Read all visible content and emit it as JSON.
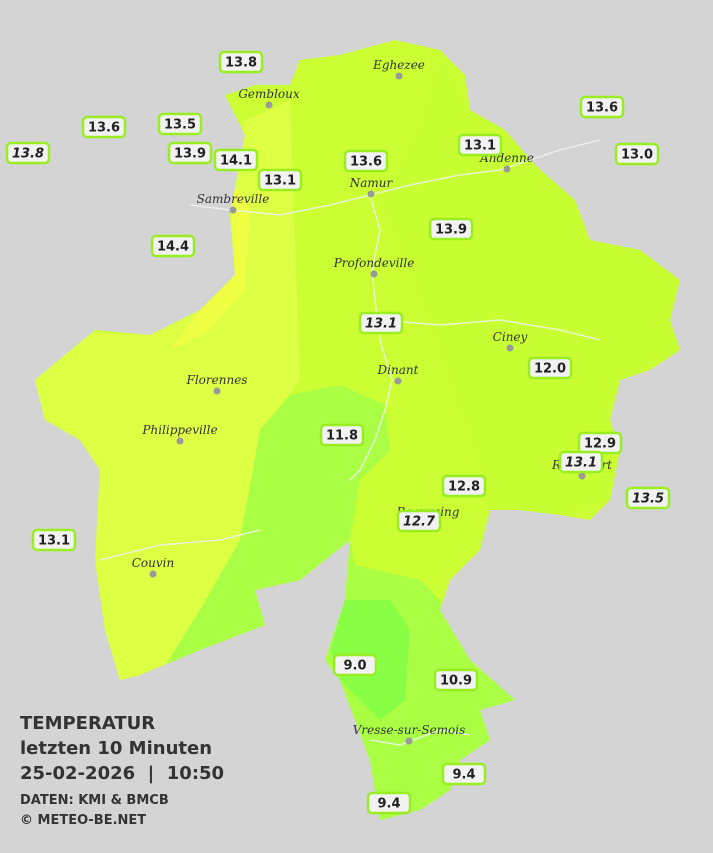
{
  "title": {
    "line1": "TEMPERATUR",
    "line2": "letzten 10 Minuten",
    "line3": "25-02-2026  |  10:50",
    "source": "DATEN: KMI & BMCB",
    "copyright": "© METEO-BE.NET"
  },
  "cities": [
    "Eghezee",
    "Gembloux",
    "Andenne",
    "Namur",
    "Sambreville",
    "Profondeville",
    "Ciney",
    "Dinant",
    "Florennes",
    "Philippeville",
    "Rochefort",
    "Beauraing",
    "Couvin",
    "Vresse-sur-Semois"
  ],
  "stations": [
    "13.8",
    "13.6",
    "13.5",
    "13.8",
    "13.9",
    "14.1",
    "13.1",
    "13.6",
    "13.1",
    "13.6",
    "13.0",
    "14.4",
    "13.9",
    "13.1",
    "12.0",
    "11.8",
    "12.9",
    "13.1",
    "12.8",
    "13.5",
    "12.7",
    "13.1",
    "9.0",
    "10.9",
    "9.4",
    "9.4"
  ]
}
